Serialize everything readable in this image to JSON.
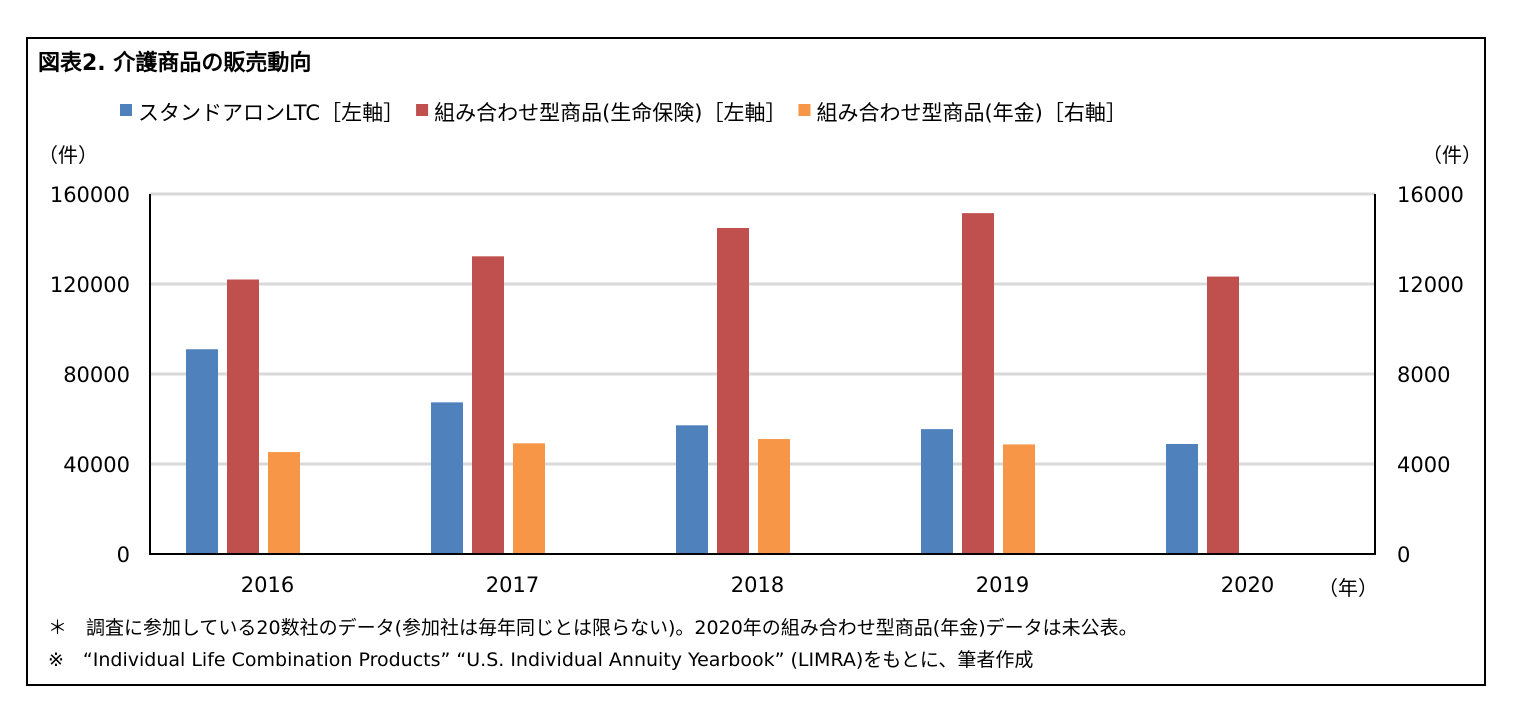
{
  "chart_data": {
    "type": "bar",
    "title": "図表2. 介護商品の販売動向",
    "categories": [
      "2016",
      "2017",
      "2018",
      "2019",
      "2020"
    ],
    "xlabel": "（年）",
    "ylabel_left": "（件）",
    "ylabel_right": "（件）",
    "ylim_left": [
      0,
      160000
    ],
    "ylim_right": [
      0,
      16000
    ],
    "yticks_left": [
      "0",
      "40000",
      "80000",
      "120000",
      "160000"
    ],
    "yticks_right": [
      "0",
      "4000",
      "8000",
      "12000",
      "16000"
    ],
    "grid": true,
    "legend_position": "top",
    "series": [
      {
        "name": "スタンドアロンLTC［左軸］",
        "axis": "left",
        "color": "#4f81bd",
        "values": [
          91000,
          67400,
          57200,
          55500,
          48900
        ]
      },
      {
        "name": "組み合わせ型商品(生命保険)［左軸］",
        "axis": "left",
        "color": "#c0504d",
        "values": [
          122000,
          132300,
          144900,
          151500,
          123300
        ]
      },
      {
        "name": "組み合わせ型商品(年金)［右軸］",
        "axis": "right",
        "color": "#f79646",
        "values": [
          4530,
          4920,
          5110,
          4870,
          null
        ]
      }
    ],
    "notes": [
      "＊　調査に参加している20数社のデータ(参加社は毎年同じとは限らない)。2020年の組み合わせ型商品(年金)データは未公表。",
      "※　“Individual Life Combination Products” “U.S. Individual Annuity Yearbook” (LIMRA)をもとに、筆者作成"
    ]
  }
}
